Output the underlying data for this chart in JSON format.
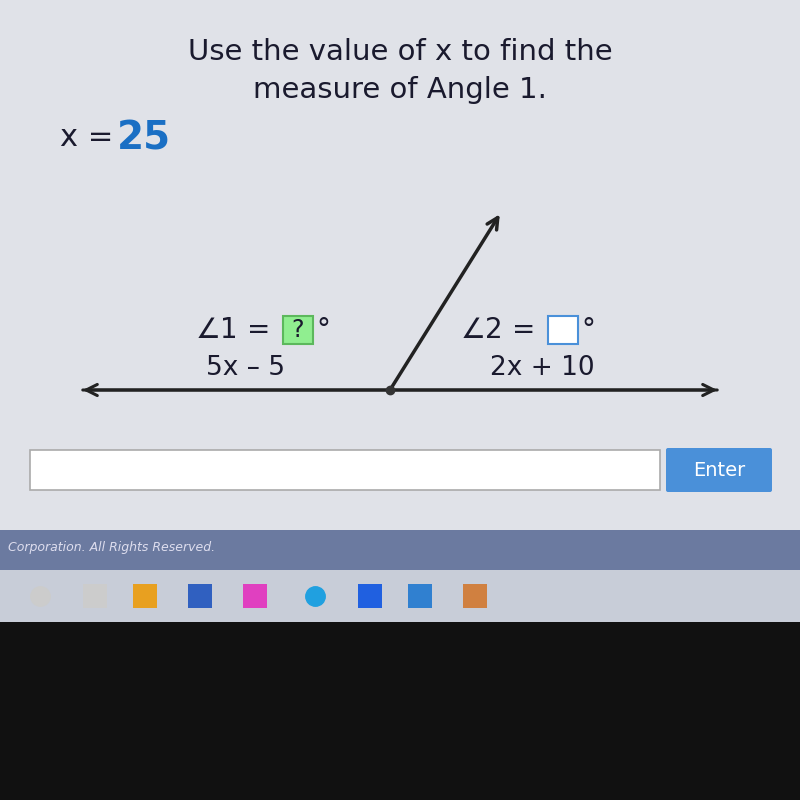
{
  "bg_color": "#d8d8d8",
  "white_card_color": "#e8e8e8",
  "title_line1": "Use the value of x to find the",
  "title_line2": "measure of Angle 1.",
  "x_label": "x = ",
  "x_value": "25",
  "x_value_color": "#1a6fc4",
  "angle1_pre": "∠1 = ",
  "angle1_box_text": "?",
  "angle1_box_bg": "#90ee90",
  "angle1_box_border": "#5cb85c",
  "angle2_pre": "∠2 = ",
  "angle2_box_text": "",
  "angle2_box_bg": "#ffffff",
  "angle2_box_border": "#4a90d9",
  "degree_symbol": "°",
  "expr_left": "5x – 5",
  "expr_right": "2x + 10",
  "enter_button_color": "#4a90d9",
  "enter_button_text": "Enter",
  "text_color": "#1a1a2e",
  "font_size_title": 21,
  "font_size_body": 20,
  "font_size_expr": 19,
  "line_color": "#222222",
  "arrow_color": "#222222",
  "input_box_bg": "#ffffff",
  "input_box_border": "#aaaaaa",
  "footer_text": "Corporation. All Rights Reserved.",
  "footer_color": "#555577",
  "taskbar_bg": "#c8cdd8",
  "taskbar_stripe": "#6b7aa0",
  "black_bottom": "#111111",
  "dot_color": "#333333"
}
